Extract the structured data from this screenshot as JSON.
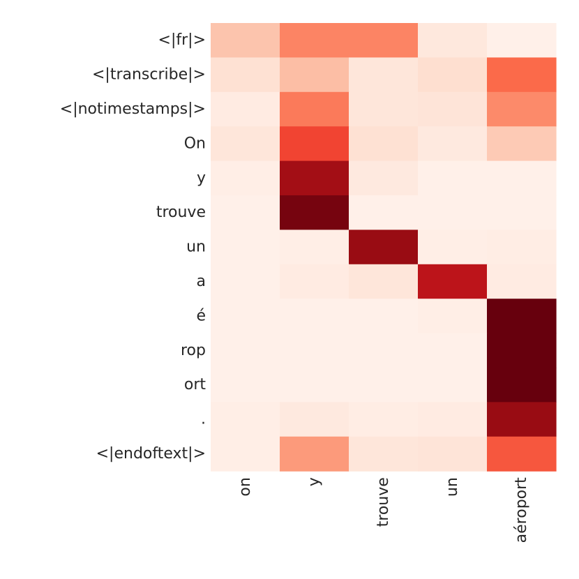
{
  "chart_data": {
    "type": "heatmap",
    "title": "",
    "xlabel": "",
    "ylabel": "",
    "colormap": "Reds",
    "value_range": [
      0,
      1
    ],
    "grid": false,
    "colorbar": false,
    "x_labels": [
      "on",
      "y",
      "trouve",
      "un",
      "aéroport"
    ],
    "y_labels": [
      "<|fr|>",
      "<|transcribe|>",
      "<|notimestamps|>",
      "On",
      "y",
      "trouve",
      "un",
      "a",
      "é",
      "rop",
      "ort",
      ".",
      "<|endoftext|>"
    ],
    "values": [
      [
        0.22,
        0.42,
        0.42,
        0.08,
        0.03
      ],
      [
        0.12,
        0.24,
        0.09,
        0.13,
        0.5
      ],
      [
        0.06,
        0.45,
        0.09,
        0.1,
        0.4
      ],
      [
        0.09,
        0.6,
        0.12,
        0.07,
        0.2
      ],
      [
        0.04,
        0.88,
        0.07,
        0.03,
        0.03
      ],
      [
        0.03,
        0.97,
        0.03,
        0.03,
        0.03
      ],
      [
        0.03,
        0.04,
        0.9,
        0.04,
        0.05
      ],
      [
        0.03,
        0.06,
        0.09,
        0.8,
        0.06
      ],
      [
        0.03,
        0.03,
        0.03,
        0.04,
        1.0
      ],
      [
        0.03,
        0.03,
        0.03,
        0.03,
        1.0
      ],
      [
        0.03,
        0.03,
        0.03,
        0.03,
        1.0
      ],
      [
        0.04,
        0.07,
        0.05,
        0.06,
        0.9
      ],
      [
        0.04,
        0.35,
        0.09,
        0.1,
        0.55
      ]
    ]
  }
}
